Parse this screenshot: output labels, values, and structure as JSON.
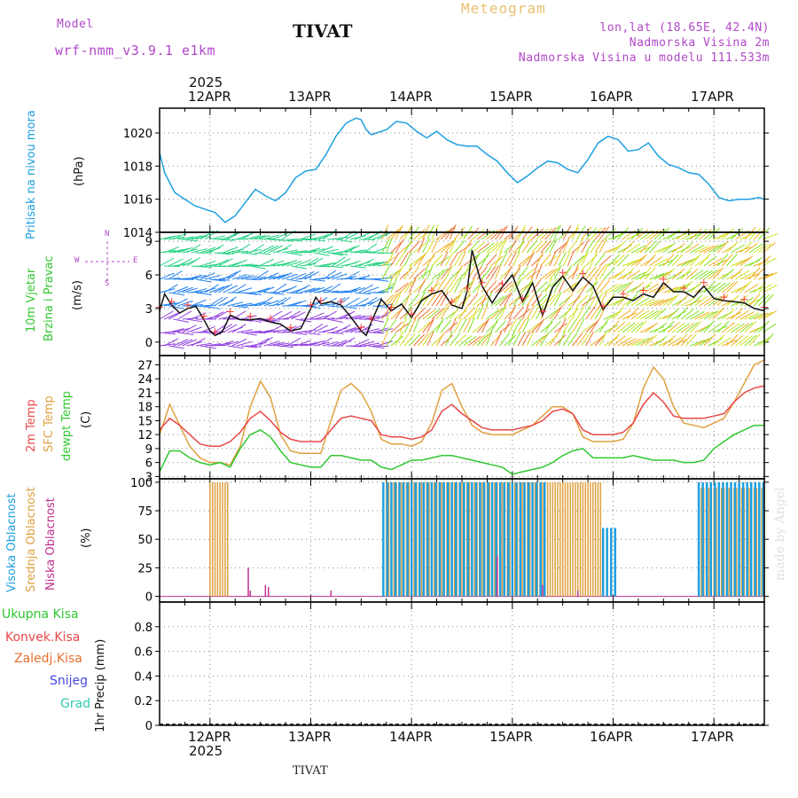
{
  "header": {
    "model_label": "Model",
    "model_name": "wrf-nmm_v3.9.1 e1km",
    "city": "TIVAT",
    "product": "Meteogram",
    "coords": "lon,lat (18.65E, 42.4N)",
    "elevation": "Nadmorska Visina 2m",
    "model_elevation": "Nadmorska Visina u modelu 111.533m",
    "footer_city": "TIVAT",
    "credit": "made by Angel"
  },
  "colors": {
    "pressure": "#1ea0e0",
    "t2m": "#e84848",
    "sfc": "#e0a040",
    "dewpt": "#30c830",
    "high_cloud": "#1ea0e0",
    "mid_cloud": "#e0a040",
    "low_cloud": "#c03090",
    "wind_speed": "#111111",
    "wind_marker": "#ff4040"
  },
  "time_axis": {
    "year": "2025",
    "dates": [
      "12APR",
      "13APR",
      "14APR",
      "15APR",
      "16APR",
      "17APR"
    ],
    "start_day": 11.5,
    "end_day": 17.5
  },
  "legend": {
    "compass": {
      "n": "N",
      "s": "S",
      "w": "W",
      "e": "E"
    }
  },
  "chart_data": [
    {
      "type": "line",
      "panel": "pressure",
      "ylabel": "(hPa)",
      "side_labels": [
        "Pritisak na nivou mora"
      ],
      "ylim": [
        1014,
        1021.5
      ],
      "yticks": [
        1014,
        1016,
        1018,
        1020
      ],
      "series": [
        {
          "x": [
            11.5,
            11.55,
            11.65,
            11.75,
            11.85,
            11.95,
            12.05,
            12.15,
            12.25,
            12.35,
            12.45,
            12.55,
            12.65,
            12.75,
            12.85,
            12.95,
            13.05,
            13.15,
            13.25,
            13.35,
            13.45,
            13.5,
            13.55,
            13.6,
            13.65,
            13.75,
            13.85,
            13.95,
            14.05,
            14.15,
            14.25,
            14.35,
            14.45,
            14.55,
            14.65,
            14.75,
            14.85,
            14.95,
            15.05,
            15.15,
            15.25,
            15.35,
            15.45,
            15.55,
            15.65,
            15.75,
            15.85,
            15.95,
            16.05,
            16.15,
            16.25,
            16.35,
            16.45,
            16.55,
            16.65,
            16.75,
            16.85,
            16.95,
            17.05,
            17.15,
            17.25,
            17.35,
            17.45,
            17.5
          ],
          "values": [
            1018.8,
            1017.6,
            1016.4,
            1016.0,
            1015.6,
            1015.4,
            1015.2,
            1014.6,
            1015.0,
            1015.8,
            1016.6,
            1016.2,
            1015.9,
            1016.4,
            1017.3,
            1017.7,
            1017.8,
            1018.7,
            1019.8,
            1020.6,
            1020.9,
            1020.8,
            1020.2,
            1019.9,
            1020.0,
            1020.2,
            1020.7,
            1020.6,
            1020.1,
            1019.7,
            1020.1,
            1019.6,
            1019.3,
            1019.2,
            1019.2,
            1018.7,
            1018.3,
            1017.6,
            1017.0,
            1017.4,
            1017.9,
            1018.3,
            1018.2,
            1017.8,
            1017.6,
            1018.4,
            1019.4,
            1019.8,
            1019.6,
            1018.9,
            1019.0,
            1019.4,
            1018.6,
            1018.1,
            1017.9,
            1017.6,
            1017.5,
            1016.9,
            1016.1,
            1015.9,
            1016.0,
            1016.0,
            1016.1,
            1016.0
          ]
        }
      ]
    },
    {
      "type": "line",
      "panel": "wind",
      "ylabel": "(m/s)",
      "side_labels": [
        "10m Vjetar",
        "Brzina i Pravac"
      ],
      "ylim": [
        -1.2,
        9.8
      ],
      "yticks": [
        0,
        3,
        6,
        9
      ],
      "series": [
        {
          "x": [
            11.5,
            11.55,
            11.62,
            11.7,
            11.78,
            11.86,
            11.94,
            12.0,
            12.05,
            12.12,
            12.2,
            12.3,
            12.4,
            12.5,
            12.6,
            12.7,
            12.8,
            12.9,
            13.0,
            13.05,
            13.1,
            13.2,
            13.3,
            13.4,
            13.5,
            13.55,
            13.6,
            13.7,
            13.8,
            13.9,
            14.0,
            14.1,
            14.2,
            14.3,
            14.4,
            14.5,
            14.55,
            14.6,
            14.7,
            14.8,
            14.9,
            15.0,
            15.1,
            15.2,
            15.3,
            15.4,
            15.5,
            15.6,
            15.7,
            15.8,
            15.9,
            16.0,
            16.1,
            16.2,
            16.3,
            16.4,
            16.5,
            16.6,
            16.7,
            16.8,
            16.9,
            17.0,
            17.1,
            17.2,
            17.3,
            17.4,
            17.5
          ],
          "values": [
            2.8,
            4.3,
            3.3,
            2.6,
            3.0,
            3.2,
            2.0,
            1.0,
            0.6,
            0.9,
            2.4,
            2.0,
            2.0,
            2.1,
            1.8,
            1.6,
            1.0,
            1.2,
            3.0,
            4.0,
            3.4,
            3.6,
            3.3,
            2.2,
            1.0,
            0.6,
            1.8,
            3.8,
            2.8,
            3.4,
            2.2,
            3.7,
            4.3,
            4.6,
            3.3,
            3.0,
            4.5,
            8.2,
            5.0,
            3.5,
            4.9,
            6.0,
            3.6,
            5.3,
            2.4,
            4.9,
            5.9,
            4.6,
            5.8,
            5.0,
            2.9,
            4.0,
            4.0,
            3.7,
            4.3,
            4.0,
            5.3,
            4.5,
            4.5,
            4.0,
            5.0,
            3.9,
            3.7,
            3.6,
            3.5,
            3.0,
            2.8
          ]
        }
      ]
    },
    {
      "type": "line",
      "panel": "temperature",
      "ylabel": "(C)",
      "side_labels": [
        "2m Temp",
        "SFC Temp",
        "dewpt Temp"
      ],
      "ylim": [
        2.5,
        29
      ],
      "yticks": [
        3,
        6,
        9,
        12,
        15,
        18,
        21,
        24,
        27
      ],
      "series": [
        {
          "name": "2m Temp",
          "x": [
            11.5,
            11.6,
            11.7,
            11.8,
            11.9,
            12.0,
            12.1,
            12.2,
            12.3,
            12.4,
            12.5,
            12.6,
            12.7,
            12.8,
            12.9,
            13.0,
            13.1,
            13.2,
            13.3,
            13.4,
            13.5,
            13.6,
            13.7,
            13.8,
            13.9,
            14.0,
            14.1,
            14.2,
            14.3,
            14.4,
            14.5,
            14.6,
            14.7,
            14.8,
            14.9,
            15.0,
            15.1,
            15.2,
            15.3,
            15.4,
            15.5,
            15.6,
            15.7,
            15.8,
            15.9,
            16.0,
            16.1,
            16.2,
            16.3,
            16.4,
            16.5,
            16.6,
            16.7,
            16.8,
            16.9,
            17.0,
            17.1,
            17.2,
            17.3,
            17.4,
            17.5
          ],
          "values": [
            13,
            15.5,
            14,
            12,
            10,
            9.5,
            9.5,
            10.5,
            12.5,
            15.5,
            17,
            15,
            12.5,
            11,
            10.5,
            10.5,
            10.5,
            13,
            15.5,
            16,
            15.5,
            15,
            12,
            11.5,
            11.5,
            11,
            11.5,
            13,
            17,
            18.5,
            16.5,
            15,
            13.5,
            13,
            13,
            13,
            13.5,
            14,
            15,
            17,
            17.5,
            16.5,
            13,
            12,
            12,
            12,
            12.5,
            14.5,
            18.5,
            21,
            19,
            16,
            15.5,
            15.5,
            15.5,
            16,
            16.5,
            19,
            21,
            22,
            22.5
          ]
        },
        {
          "name": "SFC Temp",
          "x": [
            11.5,
            11.6,
            11.7,
            11.8,
            11.9,
            12.0,
            12.1,
            12.2,
            12.3,
            12.4,
            12.5,
            12.6,
            12.7,
            12.8,
            12.9,
            13.0,
            13.1,
            13.2,
            13.3,
            13.4,
            13.5,
            13.6,
            13.7,
            13.8,
            13.9,
            14.0,
            14.1,
            14.2,
            14.3,
            14.4,
            14.5,
            14.6,
            14.7,
            14.8,
            14.9,
            15.0,
            15.1,
            15.2,
            15.3,
            15.4,
            15.5,
            15.6,
            15.7,
            15.8,
            15.9,
            16.0,
            16.1,
            16.2,
            16.3,
            16.4,
            16.5,
            16.6,
            16.7,
            16.8,
            16.9,
            17.0,
            17.1,
            17.2,
            17.3,
            17.4,
            17.5
          ],
          "values": [
            12,
            18.5,
            14,
            9.5,
            7,
            6,
            6,
            5.5,
            9.5,
            18,
            23.5,
            20,
            12,
            8.5,
            8,
            8,
            8,
            15,
            21.5,
            23,
            21,
            17,
            11,
            10,
            10,
            9.5,
            10.5,
            14.5,
            21.5,
            23,
            18,
            14,
            12.5,
            12,
            12,
            12,
            13,
            14,
            16,
            18,
            18,
            16.5,
            11.5,
            10.5,
            10.5,
            10.5,
            11,
            14.5,
            22,
            26.5,
            24,
            18,
            14.5,
            14,
            13.5,
            14.5,
            15.5,
            19,
            23,
            27,
            28
          ]
        },
        {
          "name": "dewpt Temp",
          "x": [
            11.5,
            11.6,
            11.7,
            11.8,
            11.9,
            12.0,
            12.1,
            12.2,
            12.3,
            12.4,
            12.5,
            12.6,
            12.7,
            12.8,
            12.9,
            13.0,
            13.1,
            13.2,
            13.3,
            13.4,
            13.5,
            13.6,
            13.7,
            13.8,
            13.9,
            14.0,
            14.1,
            14.2,
            14.3,
            14.4,
            14.5,
            14.6,
            14.7,
            14.8,
            14.9,
            15.0,
            15.1,
            15.2,
            15.3,
            15.4,
            15.5,
            15.6,
            15.7,
            15.8,
            15.9,
            16.0,
            16.1,
            16.2,
            16.3,
            16.4,
            16.5,
            16.6,
            16.7,
            16.8,
            16.9,
            17.0,
            17.1,
            17.2,
            17.3,
            17.4,
            17.5
          ],
          "values": [
            4,
            8.5,
            8.5,
            7,
            6,
            5.5,
            6,
            5,
            9,
            12,
            13,
            11.5,
            8.5,
            6,
            5.5,
            5,
            5,
            7.5,
            7.5,
            7,
            6.5,
            6.5,
            5,
            4.5,
            5.5,
            6.5,
            6.5,
            7,
            7.5,
            7.5,
            7,
            6.5,
            6,
            5.5,
            5,
            3.5,
            4,
            4.5,
            5,
            6,
            7.5,
            8.5,
            9,
            7,
            7,
            7,
            7,
            7.5,
            7,
            6.5,
            6.5,
            6.5,
            6,
            6,
            6.5,
            9,
            10.5,
            12,
            13,
            14,
            14
          ]
        }
      ]
    },
    {
      "type": "bar",
      "panel": "clouds",
      "ylabel": "(%)",
      "side_labels": [
        "Visoka Oblacnost",
        "Srednja Oblacnost",
        "Niska Oblacnost"
      ],
      "ylim": [
        -5,
        103
      ],
      "yticks": [
        0,
        25,
        50,
        75,
        100
      ],
      "series": [
        {
          "name": "Visoka Oblacnost",
          "spans": [
            [
              13.72,
              15.35,
              100
            ],
            [
              15.9,
              16.05,
              60
            ],
            [
              16.85,
              17.5,
              100
            ]
          ]
        },
        {
          "name": "Srednja Oblacnost",
          "spans": [
            [
              12.0,
              12.18,
              100
            ],
            [
              13.75,
              15.9,
              100
            ],
            [
              16.85,
              17.5,
              95
            ]
          ]
        },
        {
          "name": "Niska Oblacnost",
          "bars": [
            [
              12.38,
              25
            ],
            [
              12.4,
              5
            ],
            [
              12.55,
              10
            ],
            [
              12.58,
              8
            ],
            [
              13.2,
              5
            ],
            [
              14.85,
              35
            ],
            [
              15.3,
              10
            ],
            [
              15.65,
              5
            ]
          ]
        }
      ]
    },
    {
      "type": "line",
      "panel": "precip",
      "ylabel": "1hr Precip (mm)",
      "side_labels": [
        "Ukupna Kisa",
        "Konvek.Kisa",
        "Zaledj.Kisa",
        "Snijeg",
        "Grad"
      ],
      "ylim": [
        0,
        1.0
      ],
      "yticks": [
        0,
        0.2,
        0.4,
        0.6,
        0.8
      ],
      "series": []
    }
  ]
}
